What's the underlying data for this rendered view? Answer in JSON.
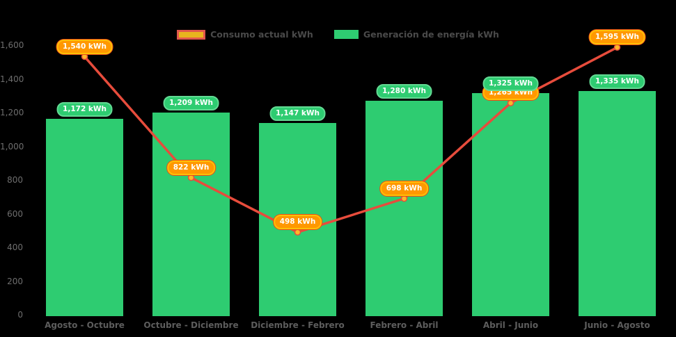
{
  "legend": {
    "consumo_label": "Consumo actual kWh",
    "generacion_label": "Generación de energía kWh",
    "consumo_swatch_fill": "#e8b41e",
    "consumo_swatch_border": "#e2574c",
    "generacion_swatch_fill": "#2ecc71"
  },
  "chart_data": {
    "type": "bar+line",
    "title": "",
    "xlabel": "",
    "ylabel": "",
    "background": "#000000",
    "categories": [
      "Agosto - Octubre",
      "Octubre - Diciembre",
      "Diciembre - Febrero",
      "Febrero - Abril",
      "Abril - Junio",
      "Junio - Agosto"
    ],
    "series": [
      {
        "name": "Generación de energía kWh",
        "type": "bar",
        "values": [
          1172,
          1209,
          1147,
          1280,
          1325,
          1335
        ],
        "labels": [
          "1,172 kWh",
          "1,209 kWh",
          "1,147 kWh",
          "1,280 kWh",
          "1,325 kWh",
          "1,335 kWh"
        ],
        "color": "#2ecc71",
        "label_bg": "#2ecc71",
        "label_border": "#62da93"
      },
      {
        "name": "Consumo actual kWh",
        "type": "line",
        "values": [
          1540,
          822,
          498,
          698,
          1265,
          1595
        ],
        "labels": [
          "1,540 kWh",
          "822 kWh",
          "498 kWh",
          "698 kWh",
          "1,265 kWh",
          "1,595 kWh"
        ],
        "color": "#e74c3c",
        "marker_fill": "#fbb829",
        "marker_stroke": "#e74c3c",
        "label_bg": "#ff9800",
        "label_border": "#ffc107",
        "label_outer": "#e64a19"
      }
    ],
    "yticks": [
      0,
      200,
      400,
      600,
      800,
      1000,
      1200,
      1400,
      1600
    ],
    "ytick_labels": [
      "0",
      "200",
      "400",
      "600",
      "800",
      "1,000",
      "1,200",
      "1,400",
      "1,600"
    ],
    "ylim": [
      0,
      1600
    ],
    "grid": false,
    "legend_position": "top-center"
  }
}
